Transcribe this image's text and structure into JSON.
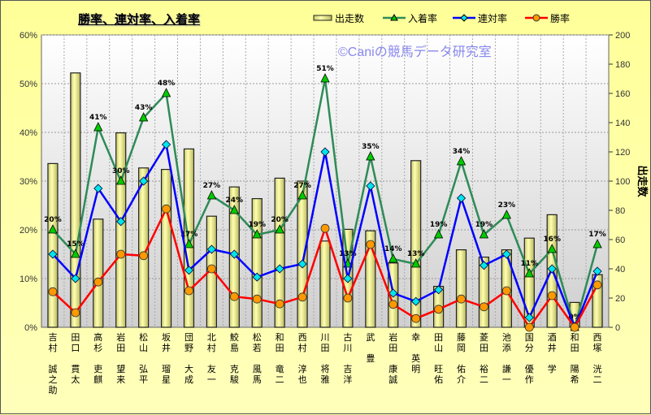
{
  "chart_data": {
    "type": "bar+line",
    "title": "勝率、連対率、入着率",
    "watermark": "©Caniの競馬データ研究室",
    "ylabel_right": "出走数",
    "ylim_left": [
      0,
      60
    ],
    "ylim_right": [
      0,
      200
    ],
    "left_ticks": [
      "0%",
      "10%",
      "20%",
      "30%",
      "40%",
      "50%",
      "60%"
    ],
    "right_ticks": [
      "0",
      "20",
      "40",
      "60",
      "80",
      "100",
      "120",
      "140",
      "160",
      "180",
      "200"
    ],
    "legend_position": "top-right",
    "categories": [
      "吉村 誠之助",
      "田口 貫太",
      "高杉 吏麒",
      "岩田 望来",
      "松山 弘平",
      "坂井 瑠星",
      "団野 大成",
      "北村 友一",
      "鮫島 克駿",
      "松若 風馬",
      "和田 竜二",
      "西村 淳也",
      "川田 将雅",
      "古川 吉洋",
      "武 豊",
      "岩田 康誠",
      "幸 英明",
      "田山 旺佑",
      "藤岡 佑介",
      "菱田 裕二",
      "池添 謙一",
      "国分 優作",
      "酒井 学",
      "和田 陽希",
      "西塚 洸二"
    ],
    "series": [
      {
        "name": "出走数",
        "type": "bar",
        "axis": "right",
        "color": "#F0F090",
        "values": [
          112,
          174,
          74,
          133,
          109,
          108,
          122,
          76,
          96,
          88,
          102,
          100,
          59,
          67,
          66,
          44,
          114,
          28,
          53,
          48,
          53,
          61,
          77,
          17,
          36
        ]
      },
      {
        "name": "入着率",
        "type": "line",
        "color": "#2E8B57",
        "marker": "#00CC00",
        "values": [
          20,
          15,
          41,
          30,
          43,
          48,
          17,
          27,
          24,
          19,
          20,
          27,
          51,
          13,
          35,
          14,
          13,
          19,
          34,
          19,
          23,
          11,
          16,
          0,
          17
        ],
        "labels": [
          "20%",
          "15%",
          "41%",
          "30%",
          "43%",
          "48%",
          "17%",
          "27%",
          "24%",
          "19%",
          "20%",
          "27%",
          "51%",
          "13%",
          "35%",
          "14%",
          "13%",
          "19%",
          "34%",
          "19%",
          "23%",
          "11%",
          "16%",
          "0%",
          "17%"
        ]
      },
      {
        "name": "連対率",
        "type": "line",
        "color": "#0000FF",
        "marker": "#00E5EE",
        "values": [
          15,
          10,
          28.5,
          21.7,
          30,
          37.5,
          11.7,
          16,
          15,
          10.3,
          12,
          13,
          36,
          10,
          29,
          7,
          5.3,
          7.7,
          26.5,
          12.7,
          15,
          2,
          12,
          0,
          11.5
        ]
      },
      {
        "name": "勝率",
        "type": "line",
        "color": "#FF0000",
        "marker": "#FF9900",
        "values": [
          7.3,
          3,
          9.3,
          15,
          14.7,
          24.3,
          7.5,
          12,
          6.3,
          5.8,
          4.8,
          6.2,
          20.3,
          6,
          17,
          4.7,
          1.8,
          3.7,
          5.8,
          4.2,
          7.5,
          0,
          6.5,
          0,
          8.7
        ]
      }
    ]
  }
}
